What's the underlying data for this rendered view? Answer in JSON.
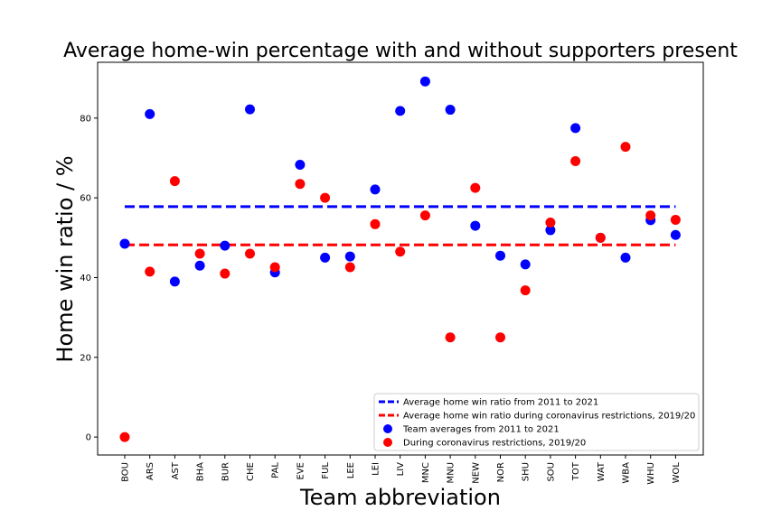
{
  "chart_data": {
    "type": "scatter",
    "title": "Average home-win percentage with and without supporters present",
    "xlabel": "Team abbreviation",
    "ylabel": "Home win ratio / %",
    "categories": [
      "BOU",
      "ARS",
      "AST",
      "BHA",
      "BUR",
      "CHE",
      "PAL",
      "EVE",
      "FUL",
      "LEE",
      "LEI",
      "LIV",
      "MNC",
      "MNU",
      "NEW",
      "NOR",
      "SHU",
      "SOU",
      "TOT",
      "WAT",
      "WBA",
      "WHU",
      "WOL"
    ],
    "ylim": [
      -4.5,
      94
    ],
    "yticks": [
      0,
      20,
      40,
      60,
      80
    ],
    "grid": false,
    "legend_position": "lower right",
    "series": [
      {
        "name": "Team averages from 2011 to 2021",
        "kind": "points",
        "color": "#0000ff",
        "values": [
          48.5,
          81.0,
          39.0,
          43.0,
          48.0,
          82.2,
          41.3,
          68.3,
          45.0,
          45.3,
          62.1,
          81.8,
          89.2,
          82.1,
          53.0,
          45.5,
          43.3,
          51.9,
          77.5,
          50.0,
          45.0,
          54.4,
          50.7
        ]
      },
      {
        "name": "During coronavirus restrictions, 2019/20",
        "kind": "points",
        "color": "#ff0000",
        "values": [
          0.0,
          41.5,
          64.2,
          46.0,
          41.0,
          46.0,
          42.6,
          63.5,
          60.0,
          42.6,
          53.4,
          46.5,
          55.6,
          25.0,
          62.5,
          25.0,
          36.8,
          53.8,
          69.2,
          50.0,
          72.8,
          55.6,
          54.5
        ]
      },
      {
        "name": "Average home win ratio from 2011 to 2021",
        "kind": "hline",
        "color": "#0000ff",
        "value": 57.8
      },
      {
        "name": "Average home win ratio during coronavirus restrictions, 2019/20",
        "kind": "hline",
        "color": "#ff0000",
        "value": 48.2
      }
    ],
    "legend": [
      {
        "label": "Average home win ratio from 2011 to 2021",
        "color": "#0000ff",
        "marker": "dash"
      },
      {
        "label": "Average home win ratio during coronavirus restrictions, 2019/20",
        "color": "#ff0000",
        "marker": "dash"
      },
      {
        "label": "Team averages from 2011 to 2021",
        "color": "#0000ff",
        "marker": "dot"
      },
      {
        "label": "During coronavirus restrictions, 2019/20",
        "color": "#ff0000",
        "marker": "dot"
      }
    ]
  }
}
